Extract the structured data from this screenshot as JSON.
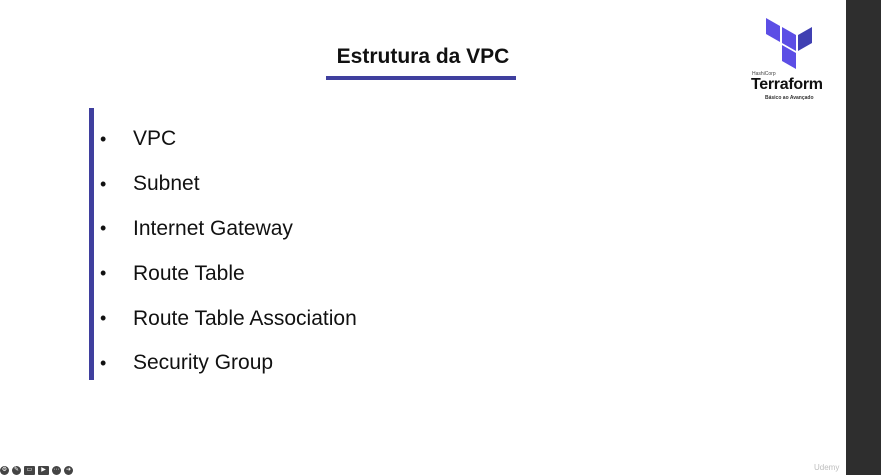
{
  "slide": {
    "title": "Estrutura da VPC",
    "bullets": [
      "VPC",
      "Subnet",
      "Internet Gateway",
      "Route Table",
      "Route Table Association",
      "Security Group"
    ],
    "accent_color": "#3f3f9e"
  },
  "logo": {
    "brand": "HashiCorp",
    "name": "Terraform",
    "subtitle": "Básico ao Avançado",
    "color": "#5c4ee5"
  },
  "player": {
    "controls": [
      "settings-icon",
      "pen-icon",
      "captions-icon",
      "video-off-icon",
      "more-icon",
      "share-icon"
    ],
    "watermark": "Udemy"
  }
}
